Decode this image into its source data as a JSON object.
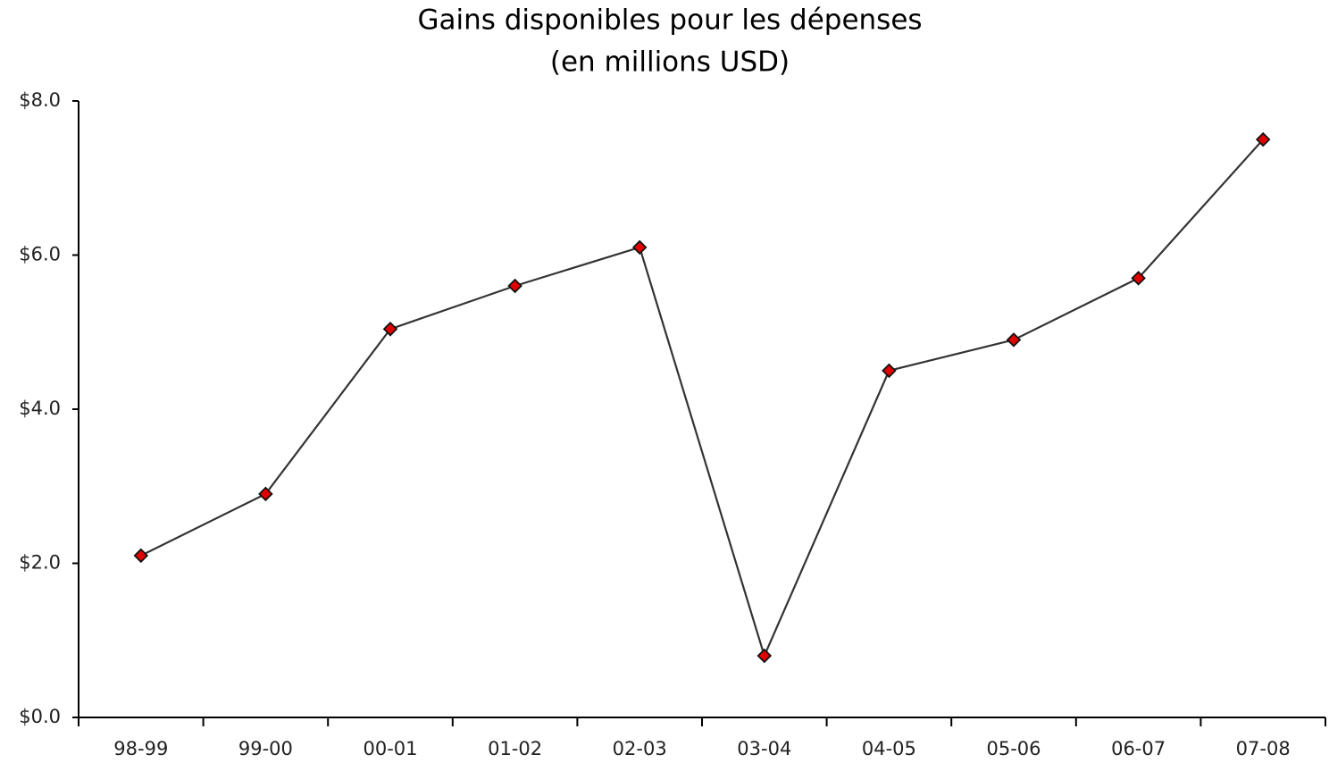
{
  "chart_data": {
    "type": "line",
    "title": "Gains disponibles pour les dépenses",
    "subtitle": "(en millions USD)",
    "categories": [
      "98-99",
      "99-00",
      "00-01",
      "01-02",
      "02-03",
      "03-04",
      "04-05",
      "05-06",
      "06-07",
      "07-08"
    ],
    "series": [
      {
        "name": null,
        "color": "#e00000",
        "line_color": "#333333",
        "values": [
          2.1,
          2.9,
          5.04,
          5.6,
          6.1,
          0.8,
          4.5,
          4.9,
          5.7,
          7.5
        ]
      }
    ],
    "ylim": [
      0,
      8
    ],
    "yticks": [
      {
        "value": 0,
        "label": "$0.0"
      },
      {
        "value": 2,
        "label": "$2.0"
      },
      {
        "value": 4,
        "label": "$4.0"
      },
      {
        "value": 6,
        "label": "$6.0"
      },
      {
        "value": 8,
        "label": "$8.0"
      }
    ],
    "grid": false
  }
}
